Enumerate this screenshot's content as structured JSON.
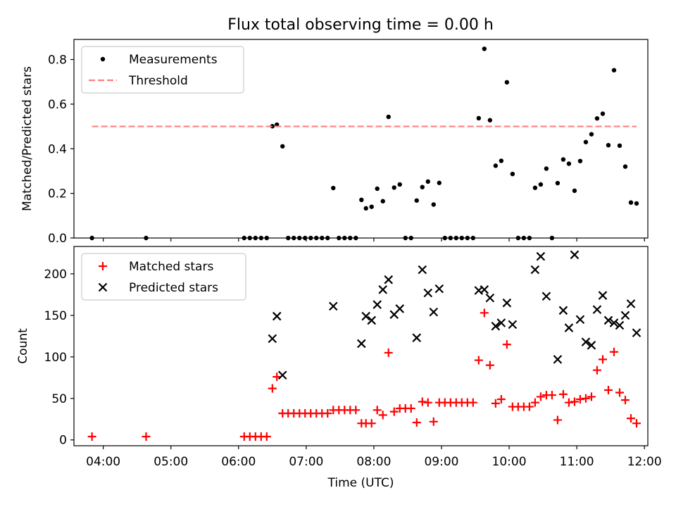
{
  "figure": {
    "title": "Flux total observing time = 0.00 h"
  },
  "chart_data": [
    {
      "type": "scatter",
      "panel": "top",
      "title": "Flux total observing time = 0.00 h",
      "xlabel": "",
      "ylabel": "Matched/Predicted stars",
      "x_type": "time",
      "xlim": [
        "03:34",
        "12:03"
      ],
      "ylim": [
        0,
        0.89
      ],
      "x_ticks": [
        "04:00",
        "05:00",
        "06:00",
        "07:00",
        "08:00",
        "09:00",
        "10:00",
        "11:00",
        "12:00"
      ],
      "y_ticks": [
        "0.0",
        "0.2",
        "0.4",
        "0.6",
        "0.8"
      ],
      "y_tick_values": [
        0,
        0.2,
        0.4,
        0.6,
        0.8
      ],
      "grid": false,
      "legend_position": "top-left",
      "series": [
        {
          "name": "Measurements",
          "style": "dot",
          "color": "#000000",
          "points": [
            [
              "03:50",
              0
            ],
            [
              "04:38",
              0
            ],
            [
              "06:05",
              0
            ],
            [
              "06:10",
              0
            ],
            [
              "06:15",
              0
            ],
            [
              "06:20",
              0
            ],
            [
              "06:25",
              0
            ],
            [
              "06:30",
              0.501
            ],
            [
              "06:34",
              0.508
            ],
            [
              "06:39",
              0.411
            ],
            [
              "06:44",
              0
            ],
            [
              "06:49",
              0
            ],
            [
              "06:54",
              0
            ],
            [
              "06:59",
              0
            ],
            [
              "07:04",
              0
            ],
            [
              "07:09",
              0
            ],
            [
              "07:14",
              0
            ],
            [
              "07:19",
              0
            ],
            [
              "07:24",
              0.224
            ],
            [
              "07:29",
              0
            ],
            [
              "07:34",
              0
            ],
            [
              "07:39",
              0
            ],
            [
              "07:44",
              0
            ],
            [
              "07:49",
              0.171
            ],
            [
              "07:53",
              0.133
            ],
            [
              "07:58",
              0.14
            ],
            [
              "08:03",
              0.221
            ],
            [
              "08:08",
              0.165
            ],
            [
              "08:13",
              0.543
            ],
            [
              "08:18",
              0.226
            ],
            [
              "08:23",
              0.24
            ],
            [
              "08:28",
              0
            ],
            [
              "08:33",
              0
            ],
            [
              "08:38",
              0.168
            ],
            [
              "08:43",
              0.228
            ],
            [
              "08:48",
              0.253
            ],
            [
              "08:53",
              0.15
            ],
            [
              "08:58",
              0.247
            ],
            [
              "09:03",
              0
            ],
            [
              "09:08",
              0
            ],
            [
              "09:13",
              0
            ],
            [
              "09:18",
              0
            ],
            [
              "09:23",
              0
            ],
            [
              "09:28",
              0
            ],
            [
              "09:33",
              0.537
            ],
            [
              "09:38",
              0.848
            ],
            [
              "09:43",
              0.528
            ],
            [
              "09:48",
              0.324
            ],
            [
              "09:53",
              0.346
            ],
            [
              "09:58",
              0.698
            ],
            [
              "10:03",
              0.287
            ],
            [
              "10:08",
              0
            ],
            [
              "10:13",
              0
            ],
            [
              "10:18",
              0
            ],
            [
              "10:23",
              0.225
            ],
            [
              "10:28",
              0.24
            ],
            [
              "10:33",
              0.311
            ],
            [
              "10:38",
              0
            ],
            [
              "10:43",
              0.246
            ],
            [
              "10:48",
              0.352
            ],
            [
              "10:53",
              0.333
            ],
            [
              "10:58",
              0.212
            ],
            [
              "11:03",
              0.345
            ],
            [
              "11:08",
              0.43
            ],
            [
              "11:13",
              0.465
            ],
            [
              "11:18",
              0.536
            ],
            [
              "11:23",
              0.557
            ],
            [
              "11:28",
              0.416
            ],
            [
              "11:33",
              0.752
            ],
            [
              "11:38",
              0.414
            ],
            [
              "11:43",
              0.32
            ],
            [
              "11:48",
              0.159
            ],
            [
              "11:53",
              0.155
            ]
          ]
        },
        {
          "name": "Threshold",
          "style": "dashed-line",
          "color": "#ff7f7f",
          "points": [
            [
              "03:50",
              0.5
            ],
            [
              "11:53",
              0.5
            ]
          ]
        }
      ]
    },
    {
      "type": "scatter",
      "panel": "bottom",
      "xlabel": "Time (UTC)",
      "ylabel": "Count",
      "x_type": "time",
      "xlim": [
        "03:34",
        "12:03"
      ],
      "ylim": [
        -7,
        233
      ],
      "x_ticks": [
        "04:00",
        "05:00",
        "06:00",
        "07:00",
        "08:00",
        "09:00",
        "10:00",
        "11:00",
        "12:00"
      ],
      "y_ticks": [
        "0",
        "50",
        "100",
        "150",
        "200"
      ],
      "y_tick_values": [
        0,
        50,
        100,
        150,
        200
      ],
      "grid": false,
      "legend_position": "top-left",
      "series": [
        {
          "name": "Matched stars",
          "style": "plus",
          "color": "#ff0000",
          "points": [
            [
              "03:50",
              4
            ],
            [
              "04:38",
              4
            ],
            [
              "06:05",
              4
            ],
            [
              "06:10",
              4
            ],
            [
              "06:15",
              4
            ],
            [
              "06:20",
              4
            ],
            [
              "06:25",
              4
            ],
            [
              "06:30",
              62
            ],
            [
              "06:34",
              76
            ],
            [
              "06:39",
              32
            ],
            [
              "06:44",
              32
            ],
            [
              "06:49",
              32
            ],
            [
              "06:54",
              32
            ],
            [
              "06:59",
              32
            ],
            [
              "07:04",
              32
            ],
            [
              "07:09",
              32
            ],
            [
              "07:14",
              32
            ],
            [
              "07:19",
              32
            ],
            [
              "07:24",
              36
            ],
            [
              "07:29",
              36
            ],
            [
              "07:34",
              36
            ],
            [
              "07:39",
              36
            ],
            [
              "07:44",
              36
            ],
            [
              "07:49",
              20
            ],
            [
              "07:53",
              20
            ],
            [
              "07:58",
              20
            ],
            [
              "08:03",
              36
            ],
            [
              "08:08",
              30
            ],
            [
              "08:13",
              105
            ],
            [
              "08:18",
              34
            ],
            [
              "08:23",
              38
            ],
            [
              "08:28",
              38
            ],
            [
              "08:33",
              38
            ],
            [
              "08:38",
              21
            ],
            [
              "08:43",
              46
            ],
            [
              "08:48",
              45
            ],
            [
              "08:53",
              22
            ],
            [
              "08:58",
              45
            ],
            [
              "09:03",
              45
            ],
            [
              "09:08",
              45
            ],
            [
              "09:13",
              45
            ],
            [
              "09:18",
              45
            ],
            [
              "09:23",
              45
            ],
            [
              "09:28",
              45
            ],
            [
              "09:33",
              96
            ],
            [
              "09:38",
              153
            ],
            [
              "09:43",
              90
            ],
            [
              "09:48",
              44
            ],
            [
              "09:53",
              49
            ],
            [
              "09:58",
              115
            ],
            [
              "10:03",
              40
            ],
            [
              "10:08",
              40
            ],
            [
              "10:13",
              40
            ],
            [
              "10:18",
              40
            ],
            [
              "10:23",
              45
            ],
            [
              "10:28",
              52
            ],
            [
              "10:33",
              54
            ],
            [
              "10:38",
              54
            ],
            [
              "10:43",
              24
            ],
            [
              "10:48",
              55
            ],
            [
              "10:53",
              45
            ],
            [
              "10:58",
              46
            ],
            [
              "11:03",
              49
            ],
            [
              "11:08",
              50
            ],
            [
              "11:13",
              52
            ],
            [
              "11:18",
              84
            ],
            [
              "11:23",
              97
            ],
            [
              "11:28",
              60
            ],
            [
              "11:33",
              106
            ],
            [
              "11:38",
              57
            ],
            [
              "11:43",
              48
            ],
            [
              "11:48",
              26
            ],
            [
              "11:53",
              20
            ]
          ]
        },
        {
          "name": "Predicted stars",
          "style": "x",
          "color": "#000000",
          "points": [
            [
              "06:30",
              122
            ],
            [
              "06:34",
              149
            ],
            [
              "06:39",
              78
            ],
            [
              "07:24",
              161
            ],
            [
              "07:49",
              116
            ],
            [
              "07:53",
              149
            ],
            [
              "07:58",
              144
            ],
            [
              "08:03",
              163
            ],
            [
              "08:08",
              181
            ],
            [
              "08:13",
              193
            ],
            [
              "08:18",
              151
            ],
            [
              "08:23",
              158
            ],
            [
              "08:38",
              123
            ],
            [
              "08:43",
              205
            ],
            [
              "08:48",
              177
            ],
            [
              "08:53",
              154
            ],
            [
              "08:58",
              182
            ],
            [
              "09:33",
              180
            ],
            [
              "09:38",
              181
            ],
            [
              "09:43",
              171
            ],
            [
              "09:48",
              137
            ],
            [
              "09:53",
              141
            ],
            [
              "09:58",
              165
            ],
            [
              "10:03",
              139
            ],
            [
              "10:23",
              205
            ],
            [
              "10:28",
              221
            ],
            [
              "10:33",
              173
            ],
            [
              "10:43",
              97
            ],
            [
              "10:48",
              156
            ],
            [
              "10:53",
              135
            ],
            [
              "10:58",
              223
            ],
            [
              "11:03",
              145
            ],
            [
              "11:08",
              118
            ],
            [
              "11:13",
              114
            ],
            [
              "11:18",
              157
            ],
            [
              "11:23",
              174
            ],
            [
              "11:28",
              144
            ],
            [
              "11:33",
              141
            ],
            [
              "11:38",
              138
            ],
            [
              "11:43",
              150
            ],
            [
              "11:48",
              164
            ],
            [
              "11:53",
              129
            ]
          ]
        }
      ]
    }
  ]
}
